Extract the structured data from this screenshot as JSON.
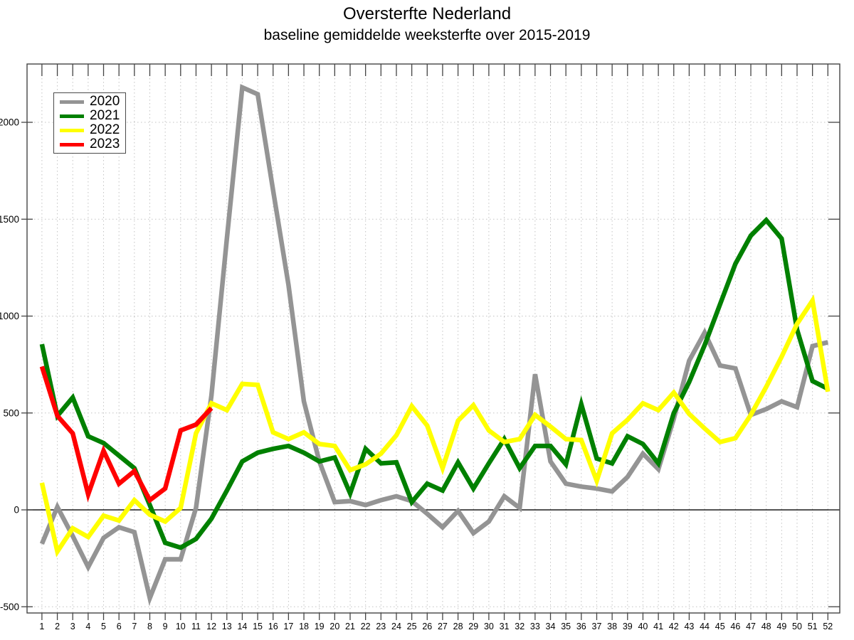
{
  "chart": {
    "title": "Oversterfte Nederland",
    "subtitle": "baseline gemiddelde weeksterfte over 2015-2019"
  },
  "chart_data": {
    "type": "line",
    "title": "Oversterfte Nederland",
    "subtitle": "baseline gemiddelde weeksterfte over 2015-2019",
    "xlabel": "",
    "ylabel": "",
    "x_labels": [
      "1",
      "2",
      "3",
      "4",
      "5",
      "6",
      "7",
      "8",
      "9",
      "10",
      "11",
      "12",
      "13",
      "14",
      "15",
      "16",
      "17",
      "18",
      "19",
      "20",
      "21",
      "22",
      "23",
      "24",
      "25",
      "26",
      "27",
      "28",
      "29",
      "30",
      "31",
      "32",
      "33",
      "34",
      "35",
      "36",
      "37",
      "38",
      "39",
      "40",
      "41",
      "42",
      "43",
      "44",
      "45",
      "46",
      "47",
      "48",
      "49",
      "50",
      "51",
      "52"
    ],
    "y_ticks": [
      -500,
      0,
      500,
      1000,
      1500,
      2000
    ],
    "ylim": [
      -530,
      2300
    ],
    "grid": true,
    "legend_position": "top-left",
    "axis_color": "#444444",
    "grid_color": "#c3c3c3",
    "zero_line_color": "#1a1a1a",
    "series": [
      {
        "name": "2020",
        "color": "#949494",
        "values": [
          -175,
          15,
          -135,
          -295,
          -145,
          -90,
          -115,
          -455,
          -255,
          -255,
          10,
          590,
          1400,
          2180,
          2145,
          1650,
          1160,
          560,
          250,
          40,
          45,
          25,
          50,
          70,
          45,
          -20,
          -90,
          -5,
          -120,
          -60,
          70,
          10,
          700,
          250,
          135,
          120,
          110,
          95,
          170,
          290,
          210,
          470,
          770,
          915,
          745,
          730,
          490,
          520,
          560,
          530,
          845,
          865
        ]
      },
      {
        "name": "2021",
        "color": "#008000",
        "values": [
          855,
          485,
          580,
          380,
          345,
          280,
          215,
          25,
          -170,
          -195,
          -150,
          -45,
          100,
          250,
          295,
          315,
          330,
          295,
          250,
          270,
          85,
          315,
          240,
          245,
          40,
          135,
          100,
          245,
          110,
          240,
          365,
          215,
          330,
          330,
          235,
          545,
          265,
          240,
          380,
          340,
          240,
          500,
          660,
          850,
          1060,
          1270,
          1415,
          1495,
          1400,
          930,
          665,
          625
        ]
      },
      {
        "name": "2022",
        "color": "#ffff00",
        "values": [
          140,
          -215,
          -95,
          -140,
          -30,
          -55,
          50,
          -25,
          -60,
          10,
          395,
          550,
          515,
          650,
          645,
          400,
          365,
          400,
          340,
          330,
          205,
          235,
          290,
          385,
          535,
          435,
          215,
          460,
          540,
          410,
          350,
          365,
          490,
          430,
          365,
          360,
          150,
          395,
          465,
          550,
          515,
          605,
          495,
          420,
          350,
          370,
          490,
          635,
          790,
          960,
          1080,
          610
        ]
      },
      {
        "name": "2023",
        "color": "#ff0000",
        "values": [
          740,
          485,
          395,
          80,
          305,
          135,
          200,
          50,
          110,
          410,
          440,
          525
        ]
      }
    ]
  }
}
